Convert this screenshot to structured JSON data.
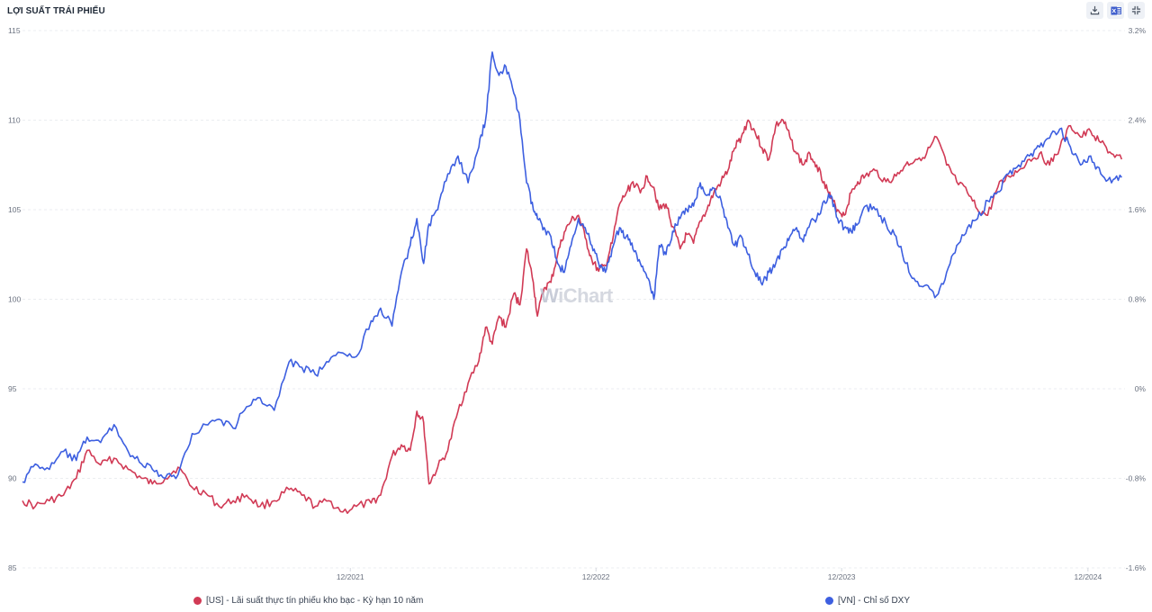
{
  "header": {
    "title": "LỢI SUẤT TRÁI PHIẾU"
  },
  "toolbar": {
    "icons": [
      "download-icon",
      "excel-icon",
      "collapse-icon"
    ]
  },
  "watermark": {
    "logo_w": "W",
    "logo_text": "iChart"
  },
  "colors": {
    "red_series": "#d13a55",
    "blue_series": "#3d5fe0",
    "grid": "#e5e7eb",
    "axis_text": "#6b7280"
  },
  "chart_data": {
    "type": "line",
    "title": "LỢI SUẤT TRÁI PHIẾU",
    "x_range": [
      "2020-08",
      "2025-01"
    ],
    "x_ticks": [
      {
        "date": "2021-12-01",
        "label": "12/2021"
      },
      {
        "date": "2022-12-01",
        "label": "12/2022"
      },
      {
        "date": "2023-12-01",
        "label": "12/2023"
      },
      {
        "date": "2024-12-01",
        "label": "12/2024"
      }
    ],
    "y_left": {
      "ylim": [
        85,
        115
      ],
      "ticks": [
        "85",
        "90",
        "95",
        "100",
        "105",
        "110",
        "115"
      ]
    },
    "y_right": {
      "ylim": [
        -1.6,
        3.2
      ],
      "ticks": [
        "-1.6%",
        "-0.8%",
        "0%",
        "0.8%",
        "1.6%",
        "2.4%",
        "3.2%"
      ]
    },
    "grid": true,
    "legend_position": "bottom",
    "series": [
      {
        "name": "[US] - Lãi suất thực tín phiếu kho bạc - Kỳ hạn 10 năm",
        "axis": "right",
        "color": "#d13a55",
        "points": [
          [
            "2020-08-01",
            -1.0
          ],
          [
            "2020-08-20",
            -1.05
          ],
          [
            "2020-09-10",
            -1.0
          ],
          [
            "2020-10-01",
            -0.95
          ],
          [
            "2020-10-20",
            -0.8
          ],
          [
            "2020-11-05",
            -0.55
          ],
          [
            "2020-11-25",
            -0.68
          ],
          [
            "2020-12-15",
            -0.62
          ],
          [
            "2021-01-05",
            -0.72
          ],
          [
            "2021-01-25",
            -0.8
          ],
          [
            "2021-02-10",
            -0.85
          ],
          [
            "2021-03-01",
            -0.8
          ],
          [
            "2021-03-20",
            -0.7
          ],
          [
            "2021-04-10",
            -0.88
          ],
          [
            "2021-04-30",
            -0.93
          ],
          [
            "2021-05-20",
            -1.05
          ],
          [
            "2021-06-10",
            -1.0
          ],
          [
            "2021-06-30",
            -0.95
          ],
          [
            "2021-07-20",
            -1.05
          ],
          [
            "2021-08-10",
            -1.0
          ],
          [
            "2021-09-01",
            -0.9
          ],
          [
            "2021-09-20",
            -0.95
          ],
          [
            "2021-10-10",
            -1.05
          ],
          [
            "2021-10-30",
            -1.0
          ],
          [
            "2021-11-20",
            -1.1
          ],
          [
            "2021-12-10",
            -1.05
          ],
          [
            "2022-01-01",
            -1.02
          ],
          [
            "2022-01-15",
            -0.95
          ],
          [
            "2022-02-01",
            -0.6
          ],
          [
            "2022-02-15",
            -0.5
          ],
          [
            "2022-02-28",
            -0.55
          ],
          [
            "2022-03-10",
            -0.2
          ],
          [
            "2022-03-20",
            -0.3
          ],
          [
            "2022-03-28",
            -0.85
          ],
          [
            "2022-04-10",
            -0.7
          ],
          [
            "2022-04-25",
            -0.55
          ],
          [
            "2022-05-10",
            -0.2
          ],
          [
            "2022-05-25",
            0.05
          ],
          [
            "2022-06-10",
            0.25
          ],
          [
            "2022-06-20",
            0.55
          ],
          [
            "2022-06-30",
            0.4
          ],
          [
            "2022-07-10",
            0.65
          ],
          [
            "2022-07-20",
            0.55
          ],
          [
            "2022-08-01",
            0.85
          ],
          [
            "2022-08-10",
            0.75
          ],
          [
            "2022-08-20",
            1.25
          ],
          [
            "2022-08-30",
            0.95
          ],
          [
            "2022-09-05",
            0.65
          ],
          [
            "2022-09-15",
            0.9
          ],
          [
            "2022-09-25",
            0.95
          ],
          [
            "2022-10-05",
            1.2
          ],
          [
            "2022-10-15",
            1.4
          ],
          [
            "2022-10-25",
            1.5
          ],
          [
            "2022-11-05",
            1.55
          ],
          [
            "2022-11-15",
            1.35
          ],
          [
            "2022-11-25",
            1.15
          ],
          [
            "2022-12-05",
            1.05
          ],
          [
            "2022-12-15",
            1.1
          ],
          [
            "2022-12-25",
            1.3
          ],
          [
            "2023-01-05",
            1.65
          ],
          [
            "2023-01-15",
            1.75
          ],
          [
            "2023-01-25",
            1.85
          ],
          [
            "2023-02-05",
            1.75
          ],
          [
            "2023-02-15",
            1.9
          ],
          [
            "2023-02-25",
            1.8
          ],
          [
            "2023-03-05",
            1.6
          ],
          [
            "2023-03-15",
            1.65
          ],
          [
            "2023-03-25",
            1.45
          ],
          [
            "2023-04-05",
            1.25
          ],
          [
            "2023-04-15",
            1.38
          ],
          [
            "2023-04-25",
            1.3
          ],
          [
            "2023-05-05",
            1.5
          ],
          [
            "2023-05-15",
            1.6
          ],
          [
            "2023-05-25",
            1.75
          ],
          [
            "2023-06-05",
            1.85
          ],
          [
            "2023-06-15",
            1.95
          ],
          [
            "2023-06-25",
            2.15
          ],
          [
            "2023-07-05",
            2.25
          ],
          [
            "2023-07-15",
            2.4
          ],
          [
            "2023-07-25",
            2.3
          ],
          [
            "2023-08-05",
            2.15
          ],
          [
            "2023-08-15",
            2.05
          ],
          [
            "2023-08-25",
            2.35
          ],
          [
            "2023-09-05",
            2.4
          ],
          [
            "2023-09-15",
            2.25
          ],
          [
            "2023-09-25",
            2.1
          ],
          [
            "2023-10-05",
            2.0
          ],
          [
            "2023-10-15",
            2.1
          ],
          [
            "2023-10-25",
            2.0
          ],
          [
            "2023-11-05",
            1.85
          ],
          [
            "2023-11-15",
            1.7
          ],
          [
            "2023-11-25",
            1.6
          ],
          [
            "2023-12-05",
            1.55
          ],
          [
            "2023-12-15",
            1.75
          ],
          [
            "2023-12-25",
            1.85
          ],
          [
            "2024-01-05",
            1.9
          ],
          [
            "2024-01-20",
            1.95
          ],
          [
            "2024-02-05",
            1.85
          ],
          [
            "2024-02-20",
            1.9
          ],
          [
            "2024-03-05",
            2.0
          ],
          [
            "2024-03-20",
            2.05
          ],
          [
            "2024-04-05",
            2.1
          ],
          [
            "2024-04-20",
            2.25
          ],
          [
            "2024-05-05",
            2.0
          ],
          [
            "2024-05-20",
            1.85
          ],
          [
            "2024-06-05",
            1.75
          ],
          [
            "2024-06-20",
            1.6
          ],
          [
            "2024-07-05",
            1.55
          ],
          [
            "2024-07-20",
            1.8
          ],
          [
            "2024-08-05",
            1.9
          ],
          [
            "2024-08-20",
            1.95
          ],
          [
            "2024-09-05",
            2.05
          ],
          [
            "2024-09-20",
            2.1
          ],
          [
            "2024-10-05",
            2.0
          ],
          [
            "2024-10-20",
            2.15
          ],
          [
            "2024-11-05",
            2.35
          ],
          [
            "2024-11-20",
            2.25
          ],
          [
            "2024-12-05",
            2.3
          ],
          [
            "2024-12-20",
            2.2
          ],
          [
            "2025-01-05",
            2.1
          ],
          [
            "2025-01-20",
            2.05
          ]
        ]
      },
      {
        "name": "[VN] - Chỉ số DXY",
        "axis": "left",
        "color": "#3d5fe0",
        "points": [
          [
            "2020-08-01",
            89.8
          ],
          [
            "2020-08-20",
            90.8
          ],
          [
            "2020-09-10",
            90.5
          ],
          [
            "2020-10-01",
            91.5
          ],
          [
            "2020-10-20",
            91.0
          ],
          [
            "2020-11-05",
            92.3
          ],
          [
            "2020-11-25",
            92.0
          ],
          [
            "2020-12-15",
            93.0
          ],
          [
            "2021-01-05",
            91.5
          ],
          [
            "2021-01-25",
            90.8
          ],
          [
            "2021-02-10",
            90.5
          ],
          [
            "2021-03-01",
            90.0
          ],
          [
            "2021-03-20",
            90.2
          ],
          [
            "2021-04-10",
            92.5
          ],
          [
            "2021-04-30",
            93.0
          ],
          [
            "2021-05-20",
            93.3
          ],
          [
            "2021-06-10",
            92.8
          ],
          [
            "2021-06-30",
            94.0
          ],
          [
            "2021-07-20",
            94.5
          ],
          [
            "2021-08-10",
            93.8
          ],
          [
            "2021-09-01",
            96.5
          ],
          [
            "2021-09-20",
            96.2
          ],
          [
            "2021-10-10",
            95.8
          ],
          [
            "2021-10-30",
            96.5
          ],
          [
            "2021-11-20",
            97.0
          ],
          [
            "2021-12-10",
            96.8
          ],
          [
            "2022-01-01",
            98.8
          ],
          [
            "2022-01-15",
            99.5
          ],
          [
            "2022-02-01",
            98.5
          ],
          [
            "2022-02-15",
            101.5
          ],
          [
            "2022-02-28",
            103.0
          ],
          [
            "2022-03-10",
            104.5
          ],
          [
            "2022-03-20",
            102.0
          ],
          [
            "2022-03-28",
            104.2
          ],
          [
            "2022-04-10",
            105.0
          ],
          [
            "2022-04-25",
            107.0
          ],
          [
            "2022-05-10",
            108.0
          ],
          [
            "2022-05-25",
            106.5
          ],
          [
            "2022-06-10",
            108.5
          ],
          [
            "2022-06-20",
            110.0
          ],
          [
            "2022-06-30",
            113.8
          ],
          [
            "2022-07-10",
            112.5
          ],
          [
            "2022-07-20",
            113.0
          ],
          [
            "2022-08-01",
            111.5
          ],
          [
            "2022-08-10",
            110.0
          ],
          [
            "2022-08-20",
            106.5
          ],
          [
            "2022-08-30",
            105.0
          ],
          [
            "2022-09-05",
            104.5
          ],
          [
            "2022-09-15",
            104.0
          ],
          [
            "2022-09-25",
            103.5
          ],
          [
            "2022-10-05",
            102.0
          ],
          [
            "2022-10-15",
            101.5
          ],
          [
            "2022-10-25",
            103.0
          ],
          [
            "2022-11-05",
            104.5
          ],
          [
            "2022-11-15",
            104.0
          ],
          [
            "2022-11-25",
            103.0
          ],
          [
            "2022-12-05",
            102.0
          ],
          [
            "2022-12-15",
            101.5
          ],
          [
            "2022-12-25",
            102.8
          ],
          [
            "2023-01-05",
            104.0
          ],
          [
            "2023-01-15",
            103.5
          ],
          [
            "2023-01-25",
            102.8
          ],
          [
            "2023-02-05",
            102.0
          ],
          [
            "2023-02-15",
            101.2
          ],
          [
            "2023-02-25",
            100.0
          ],
          [
            "2023-03-05",
            103.0
          ],
          [
            "2023-03-15",
            102.5
          ],
          [
            "2023-03-25",
            103.8
          ],
          [
            "2023-04-05",
            104.5
          ],
          [
            "2023-04-15",
            105.0
          ],
          [
            "2023-04-25",
            105.2
          ],
          [
            "2023-05-05",
            106.5
          ],
          [
            "2023-05-15",
            105.8
          ],
          [
            "2023-05-25",
            106.2
          ],
          [
            "2023-06-05",
            105.5
          ],
          [
            "2023-06-15",
            104.0
          ],
          [
            "2023-06-25",
            103.0
          ],
          [
            "2023-07-05",
            103.5
          ],
          [
            "2023-07-15",
            102.5
          ],
          [
            "2023-07-25",
            101.5
          ],
          [
            "2023-08-05",
            100.8
          ],
          [
            "2023-08-15",
            101.5
          ],
          [
            "2023-08-25",
            102.0
          ],
          [
            "2023-09-05",
            102.8
          ],
          [
            "2023-09-15",
            103.5
          ],
          [
            "2023-09-25",
            104.0
          ],
          [
            "2023-10-05",
            103.2
          ],
          [
            "2023-10-15",
            104.2
          ],
          [
            "2023-10-25",
            104.5
          ],
          [
            "2023-11-05",
            105.5
          ],
          [
            "2023-11-15",
            105.8
          ],
          [
            "2023-11-25",
            104.5
          ],
          [
            "2023-12-05",
            104.0
          ],
          [
            "2023-12-15",
            103.8
          ],
          [
            "2023-12-25",
            104.2
          ],
          [
            "2024-01-05",
            105.2
          ],
          [
            "2024-01-20",
            105.0
          ],
          [
            "2024-02-05",
            104.2
          ],
          [
            "2024-02-20",
            103.5
          ],
          [
            "2024-03-05",
            102.0
          ],
          [
            "2024-03-20",
            101.0
          ],
          [
            "2024-04-05",
            100.8
          ],
          [
            "2024-04-20",
            100.2
          ],
          [
            "2024-05-05",
            101.5
          ],
          [
            "2024-05-20",
            103.0
          ],
          [
            "2024-06-05",
            104.0
          ],
          [
            "2024-06-20",
            104.5
          ],
          [
            "2024-07-05",
            105.5
          ],
          [
            "2024-07-20",
            106.0
          ],
          [
            "2024-08-05",
            107.0
          ],
          [
            "2024-08-20",
            107.5
          ],
          [
            "2024-09-05",
            108.0
          ],
          [
            "2024-09-20",
            108.5
          ],
          [
            "2024-10-05",
            109.0
          ],
          [
            "2024-10-20",
            109.5
          ],
          [
            "2024-11-05",
            108.5
          ],
          [
            "2024-11-20",
            107.5
          ],
          [
            "2024-12-05",
            108.0
          ],
          [
            "2024-12-20",
            107.0
          ],
          [
            "2025-01-05",
            106.5
          ],
          [
            "2025-01-20",
            106.8
          ]
        ]
      }
    ]
  },
  "legend": [
    {
      "label": "[US] - Lãi suất thực tín phiếu kho bạc - Kỳ hạn 10 năm",
      "color": "#d13a55"
    },
    {
      "label": "[VN] - Chỉ số DXY",
      "color": "#3d5fe0"
    }
  ]
}
